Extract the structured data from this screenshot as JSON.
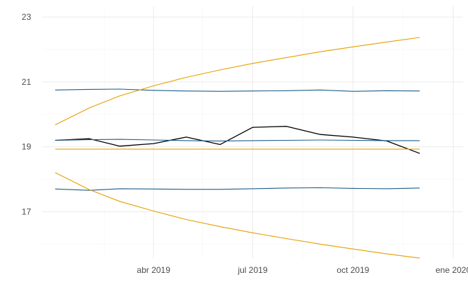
{
  "chart_data": {
    "type": "line",
    "title": "",
    "xlabel": "",
    "ylabel": "",
    "x": [
      "2019-01-01",
      "2019-02-01",
      "2019-03-01",
      "2019-04-01",
      "2019-05-01",
      "2019-06-01",
      "2019-07-01",
      "2019-08-01",
      "2019-09-01",
      "2019-10-01",
      "2019-11-01",
      "2019-12-01",
      "2020-01-01"
    ],
    "xlim": [
      "2018-12-20",
      "2020-01-10"
    ],
    "ylim": [
      15.55,
      23.35
    ],
    "x_ticks": [
      {
        "date": "2019-04-01",
        "label": "abr 2019"
      },
      {
        "date": "2019-07-01",
        "label": "jul 2019"
      },
      {
        "date": "2019-10-01",
        "label": "oct 2019"
      },
      {
        "date": "2020-01-01",
        "label": "ene 2020"
      }
    ],
    "x_minor_ticks": [
      "2019-02-15",
      "2019-05-16",
      "2019-08-16",
      "2019-11-16"
    ],
    "y_ticks": [
      17,
      19,
      21,
      23
    ],
    "y_minor_ticks": [
      16,
      18,
      20,
      22
    ],
    "grid": true,
    "legend": "none",
    "series": [
      {
        "color": "#000000",
        "values": [
          19.2,
          19.25,
          19.02,
          19.1,
          19.3,
          19.07,
          19.6,
          19.63,
          19.38,
          19.3,
          19.18,
          18.8,
          null
        ]
      },
      {
        "color": "#1f5f8b",
        "values": [
          20.75,
          20.77,
          20.78,
          20.74,
          20.72,
          20.71,
          20.72,
          20.73,
          20.75,
          20.71,
          20.73,
          20.72,
          null
        ]
      },
      {
        "color": "#1f5f8b",
        "values": [
          19.2,
          19.22,
          19.23,
          19.21,
          19.19,
          19.18,
          19.19,
          19.2,
          19.21,
          19.2,
          19.19,
          19.19,
          null
        ]
      },
      {
        "color": "#1f5f8b",
        "values": [
          17.7,
          17.66,
          17.71,
          17.7,
          17.69,
          17.69,
          17.71,
          17.73,
          17.74,
          17.72,
          17.71,
          17.73,
          null
        ]
      },
      {
        "color": "#e69f00",
        "values": [
          19.68,
          20.2,
          20.57,
          20.88,
          21.14,
          21.37,
          21.57,
          21.75,
          21.93,
          22.08,
          22.23,
          22.37,
          null
        ]
      },
      {
        "color": "#e69f00",
        "values": [
          18.93,
          18.93,
          18.93,
          18.93,
          18.93,
          18.93,
          18.93,
          18.93,
          18.93,
          18.93,
          18.93,
          18.93,
          null
        ]
      },
      {
        "color": "#e69f00",
        "values": [
          18.2,
          17.68,
          17.32,
          17.02,
          16.76,
          16.54,
          16.35,
          16.17,
          16.0,
          15.85,
          15.7,
          15.57,
          null
        ]
      }
    ]
  }
}
